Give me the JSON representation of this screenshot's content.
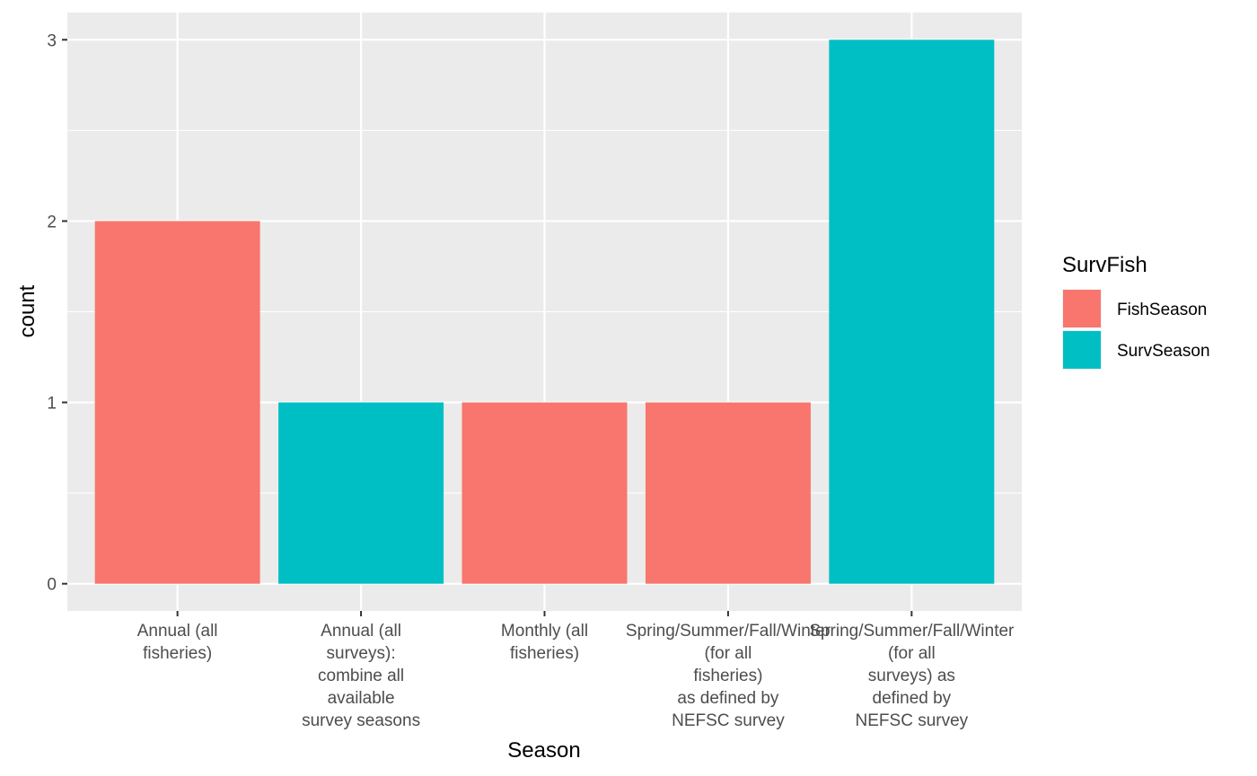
{
  "chart_data": {
    "type": "bar",
    "title": "",
    "xlabel": "Season",
    "ylabel": "count",
    "categories": [
      [
        "Annual (all",
        "fisheries)"
      ],
      [
        "Annual (all",
        "surveys):",
        "combine all",
        "available",
        "survey seasons"
      ],
      [
        "Monthly (all",
        "fisheries)"
      ],
      [
        "Spring/Summer/Fall/Winter",
        "(for all",
        "fisheries)",
        "as defined by",
        "NEFSC survey"
      ],
      [
        "Spring/Summer/Fall/Winter",
        "(for all",
        "surveys) as",
        "defined by",
        "NEFSC survey"
      ]
    ],
    "values": [
      2,
      1,
      1,
      1,
      3
    ],
    "groups": [
      "FishSeason",
      "SurvSeason",
      "FishSeason",
      "FishSeason",
      "SurvSeason"
    ],
    "y_ticks": [
      0,
      1,
      2,
      3
    ],
    "ylim": [
      -0.15,
      3.15
    ],
    "grid": true,
    "legend": {
      "title": "SurvFish",
      "placement": "right",
      "items": [
        {
          "name": "FishSeason",
          "color": "#F8766D"
        },
        {
          "name": "SurvSeason",
          "color": "#00BFC4"
        }
      ]
    },
    "colors": {
      "panel_background": "#EBEBEB",
      "grid": "#FFFFFF",
      "tick": "#333333"
    }
  }
}
